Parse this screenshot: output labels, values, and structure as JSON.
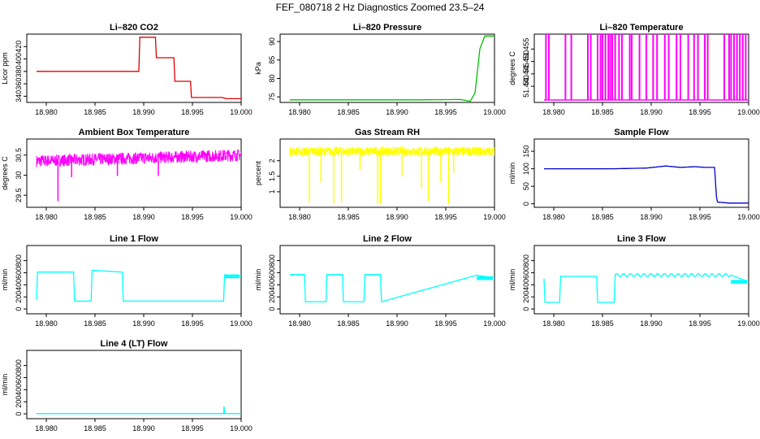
{
  "figure": {
    "title": "FEF_080718  2 Hz Diagnostics Zoomed 23.5–24"
  },
  "chart_data": [
    {
      "type": "line",
      "title": "Li–820 CO2",
      "xlabel": "",
      "ylabel": "Licor ppm",
      "color": "#e00000",
      "xlim": [
        18.978,
        19.0
      ],
      "ylim": [
        330,
        440
      ],
      "xticks": [
        "18.980",
        "18.985",
        "18.990",
        "18.995",
        "19.000"
      ],
      "yticks": [
        340,
        360,
        380,
        400,
        420
      ],
      "series": [
        {
          "x": [
            18.979,
            18.9895,
            18.9896,
            18.9912,
            18.9913,
            18.9931,
            18.9932,
            18.9948,
            18.9949,
            18.998,
            18.9985,
            19.0
          ],
          "y": [
            380,
            380,
            435,
            435,
            402,
            402,
            364,
            364,
            338,
            338,
            336,
            336
          ]
        }
      ]
    },
    {
      "type": "line",
      "title": "Li–820 Pressure",
      "xlabel": "",
      "ylabel": "kPa",
      "color": "#00c000",
      "xlim": [
        18.978,
        19.0
      ],
      "ylim": [
        73.5,
        92
      ],
      "xticks": [
        "18.980",
        "18.985",
        "18.990",
        "18.995",
        "19.000"
      ],
      "yticks": [
        75,
        80,
        85,
        90
      ],
      "series": [
        {
          "x": [
            18.979,
            18.985,
            18.992,
            18.9965,
            18.9975,
            18.998,
            18.9985,
            18.999,
            19.0
          ],
          "y": [
            74.2,
            74.2,
            74.2,
            74.3,
            73.8,
            76,
            88,
            91.5,
            91.5
          ]
        }
      ]
    },
    {
      "type": "line",
      "title": "Li–820 Temperature",
      "xlabel": "",
      "ylabel": "degrees C",
      "color": "#ff00ff",
      "xlim": [
        18.978,
        19.0
      ],
      "ylim": [
        51.4335,
        51.461
      ],
      "xticks": [
        "18.980",
        "18.985",
        "18.990",
        "18.995",
        "19.000"
      ],
      "yticks": [
        "51.440",
        "51.445",
        "51.450",
        "51.455"
      ],
      "baseline": 51.4345,
      "spike_top": 51.461,
      "spikes_x": [
        18.9792,
        18.9795,
        18.9812,
        18.9818,
        18.9835,
        18.9838,
        18.9845,
        18.9848,
        18.985,
        18.9853,
        18.9856,
        18.9858,
        18.986,
        18.9863,
        18.9867,
        18.987,
        18.9878,
        18.988,
        18.9888,
        18.9895,
        18.9902,
        18.9906,
        18.9914,
        18.9918,
        18.9926,
        18.993,
        18.9938,
        18.9944,
        18.9948,
        18.9955,
        18.9958,
        18.9975,
        18.998,
        18.9982,
        18.9985,
        18.9988,
        18.9991,
        18.9994,
        18.9997
      ]
    },
    {
      "type": "line",
      "title": "Ambient Box Temperature",
      "xlabel": "",
      "ylabel": "degrees C",
      "color": "#ff00ff",
      "xlim": [
        18.978,
        19.0
      ],
      "ylim": [
        29.2,
        30.9
      ],
      "xticks": [
        "18.980",
        "18.985",
        "18.990",
        "18.995",
        "19.000"
      ],
      "yticks": [
        29.5,
        30.0,
        30.5
      ],
      "band": {
        "center": 30.35,
        "half_width": 0.15,
        "drift_end": 0.15,
        "spikes_down": [
          [
            18.9812,
            29.35
          ],
          [
            18.9826,
            29.95
          ],
          [
            18.9873,
            29.98
          ],
          [
            18.9915,
            29.98
          ]
        ]
      }
    },
    {
      "type": "line",
      "title": "Gas Stream RH",
      "xlabel": "",
      "ylabel": "percent",
      "color": "#ffff00",
      "xlim": [
        18.978,
        19.0
      ],
      "ylim": [
        0.5,
        2.7
      ],
      "xticks": [
        "18.980",
        "18.985",
        "18.990",
        "18.995",
        "19.000"
      ],
      "yticks": [
        1.0,
        1.5,
        2.0
      ],
      "band": {
        "center": 2.3,
        "half_width": 0.15,
        "drift_end": 0,
        "spikes_down": [
          [
            18.981,
            0.65
          ],
          [
            18.9822,
            1.3
          ],
          [
            18.9835,
            0.6
          ],
          [
            18.9843,
            0.65
          ],
          [
            18.9862,
            1.7
          ],
          [
            18.988,
            0.6
          ],
          [
            18.9883,
            0.6
          ],
          [
            18.9905,
            1.5
          ],
          [
            18.9925,
            1.1
          ],
          [
            18.9932,
            0.7
          ],
          [
            18.9945,
            1.3
          ],
          [
            18.9953,
            0.6
          ],
          [
            18.9958,
            1.6
          ]
        ]
      }
    },
    {
      "type": "line",
      "title": "Sample Flow",
      "xlabel": "",
      "ylabel": "ml/min",
      "color": "#0000cc",
      "xlim": [
        18.978,
        19.0
      ],
      "ylim": [
        -10,
        185
      ],
      "xticks": [
        "18.980",
        "18.985",
        "18.990",
        "18.995",
        "19.000"
      ],
      "yticks": [
        0,
        50,
        100,
        150
      ],
      "series": [
        {
          "x": [
            18.979,
            18.986,
            18.9895,
            18.9915,
            18.993,
            18.9945,
            18.9955,
            18.9965,
            18.9967,
            18.9968,
            18.998,
            19.0
          ],
          "y": [
            100,
            100,
            102,
            108,
            104,
            106,
            104,
            104,
            20,
            5,
            2,
            2
          ]
        }
      ]
    },
    {
      "type": "line",
      "title": "Line 1 Flow",
      "xlabel": "",
      "ylabel": "ml/min",
      "color": "#00ffff",
      "xlim": [
        18.978,
        19.0
      ],
      "ylim": [
        -80,
        1050
      ],
      "xticks": [
        "18.980",
        "18.985",
        "18.990",
        "18.995",
        "19.000"
      ],
      "yticks": [
        0,
        200,
        400,
        600,
        800
      ],
      "series": [
        {
          "x": [
            18.979,
            18.9791,
            18.9828,
            18.9829,
            18.9846,
            18.9847,
            18.9878,
            18.9879,
            18.9982,
            18.9983,
            19.0
          ],
          "y": [
            150,
            610,
            610,
            130,
            130,
            640,
            610,
            130,
            130,
            560,
            540
          ]
        }
      ],
      "noise_from": 18.9983
    },
    {
      "type": "line",
      "title": "Line 2 Flow",
      "xlabel": "",
      "ylabel": "ml/min",
      "color": "#00ffff",
      "xlim": [
        18.978,
        19.0
      ],
      "ylim": [
        -80,
        1050
      ],
      "xticks": [
        "18.980",
        "18.985",
        "18.990",
        "18.995",
        "19.000"
      ],
      "yticks": [
        0,
        200,
        400,
        600,
        800
      ],
      "series": [
        {
          "x": [
            18.979,
            18.9805,
            18.9806,
            18.9827,
            18.9828,
            18.9844,
            18.9845,
            18.9866,
            18.9867,
            18.9883,
            18.9884,
            18.9982,
            19.0
          ],
          "y": [
            570,
            570,
            120,
            120,
            570,
            570,
            120,
            120,
            570,
            570,
            120,
            560,
            510
          ]
        }
      ],
      "wave_from": 18.9884,
      "noise_from": 18.9982
    },
    {
      "type": "line",
      "title": "Line 3 Flow",
      "xlabel": "",
      "ylabel": "ml/min",
      "color": "#00ffff",
      "xlim": [
        18.978,
        19.0
      ],
      "ylim": [
        -80,
        1050
      ],
      "xticks": [
        "18.980",
        "18.985",
        "18.990",
        "18.995",
        "19.000"
      ],
      "yticks": [
        0,
        200,
        400,
        600,
        800
      ],
      "series": [
        {
          "x": [
            18.979,
            18.9791,
            18.9806,
            18.9807,
            18.9844,
            18.9845,
            18.9862,
            18.9863,
            18.9982,
            19.0
          ],
          "y": [
            500,
            110,
            110,
            540,
            540,
            110,
            110,
            560,
            560,
            450
          ]
        }
      ],
      "wave_from": 18.9863,
      "noise_from": 18.9982
    },
    {
      "type": "line",
      "title": "Line 4 (LT) Flow",
      "xlabel": "",
      "ylabel": "ml/min",
      "color": "#00ffff",
      "xlim": [
        18.978,
        19.0
      ],
      "ylim": [
        -80,
        1050
      ],
      "xticks": [
        "18.980",
        "18.985",
        "18.990",
        "18.995",
        "19.000"
      ],
      "yticks": [
        0,
        200,
        400,
        600,
        800
      ],
      "series": [
        {
          "x": [
            18.979,
            18.9982,
            18.99825,
            18.9983,
            19.0
          ],
          "y": [
            5,
            5,
            120,
            5,
            5
          ]
        }
      ]
    }
  ]
}
